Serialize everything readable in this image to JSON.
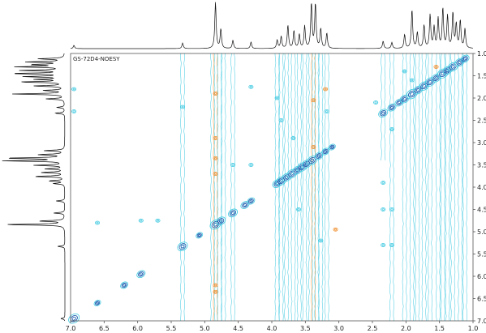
{
  "chart_data": {
    "type": "contour",
    "title": "GS-72D4-NOESY",
    "xlabel": "",
    "ylabel": "",
    "xlim": [
      7.0,
      1.0
    ],
    "ylim": [
      1.0,
      7.0
    ],
    "x_ticks": [
      "7.0",
      "6.5",
      "6.0",
      "5.5",
      "5.0",
      "4.5",
      "4.0",
      "3.5",
      "3.0",
      "2.5",
      "2.0",
      "1.5",
      "1.0"
    ],
    "y_ticks": [
      "1.0",
      "1.5",
      "2.0",
      "2.5",
      "3.0",
      "3.5",
      "4.0",
      "4.5",
      "5.0",
      "5.5",
      "6.0",
      "6.5",
      "7.0"
    ],
    "colors": {
      "contour_positive": "#3cc8e0",
      "contour_diagonal": "#1f5fb0",
      "contour_negative": "#f08c28",
      "spectrum_line": "#111111",
      "frame": "#555555"
    },
    "projection_peaks": [
      {
        "ppm": 6.95,
        "h": 0.07
      },
      {
        "ppm": 5.33,
        "h": 0.12
      },
      {
        "ppm": 4.84,
        "h": 1.0
      },
      {
        "ppm": 4.76,
        "h": 0.42
      },
      {
        "ppm": 4.58,
        "h": 0.18
      },
      {
        "ppm": 4.31,
        "h": 0.14
      },
      {
        "ppm": 3.92,
        "h": 0.18
      },
      {
        "ppm": 3.86,
        "h": 0.26
      },
      {
        "ppm": 3.76,
        "h": 0.5
      },
      {
        "ppm": 3.67,
        "h": 0.38
      },
      {
        "ppm": 3.59,
        "h": 0.3
      },
      {
        "ppm": 3.51,
        "h": 0.48
      },
      {
        "ppm": 3.41,
        "h": 0.97
      },
      {
        "ppm": 3.35,
        "h": 0.96
      },
      {
        "ppm": 3.27,
        "h": 0.42
      },
      {
        "ppm": 3.18,
        "h": 0.33
      },
      {
        "ppm": 2.34,
        "h": 0.16
      },
      {
        "ppm": 2.21,
        "h": 0.13
      },
      {
        "ppm": 2.02,
        "h": 0.3
      },
      {
        "ppm": 1.91,
        "h": 0.84
      },
      {
        "ppm": 1.83,
        "h": 0.34
      },
      {
        "ppm": 1.73,
        "h": 0.5
      },
      {
        "ppm": 1.64,
        "h": 0.72
      },
      {
        "ppm": 1.58,
        "h": 0.45
      },
      {
        "ppm": 1.52,
        "h": 0.64
      },
      {
        "ppm": 1.45,
        "h": 0.86
      },
      {
        "ppm": 1.38,
        "h": 0.7
      },
      {
        "ppm": 1.3,
        "h": 0.76
      },
      {
        "ppm": 1.25,
        "h": 0.52
      },
      {
        "ppm": 1.19,
        "h": 0.6
      },
      {
        "ppm": 1.12,
        "h": 0.42
      }
    ],
    "diagonal_peaks": [
      {
        "ppm": 6.95,
        "s": 1.3
      },
      {
        "ppm": 6.6,
        "s": 0.8
      },
      {
        "ppm": 6.2,
        "s": 0.9
      },
      {
        "ppm": 5.95,
        "s": 1.0
      },
      {
        "ppm": 5.33,
        "s": 1.2
      },
      {
        "ppm": 5.08,
        "s": 0.8
      },
      {
        "ppm": 4.84,
        "s": 1.3
      },
      {
        "ppm": 4.76,
        "s": 1.1
      },
      {
        "ppm": 4.58,
        "s": 1.1
      },
      {
        "ppm": 4.4,
        "s": 1.0
      },
      {
        "ppm": 4.31,
        "s": 0.9
      },
      {
        "ppm": 3.92,
        "s": 1.1
      },
      {
        "ppm": 3.86,
        "s": 1.2
      },
      {
        "ppm": 3.78,
        "s": 1.1
      },
      {
        "ppm": 3.7,
        "s": 1.2
      },
      {
        "ppm": 3.62,
        "s": 1.1
      },
      {
        "ppm": 3.55,
        "s": 1.2
      },
      {
        "ppm": 3.48,
        "s": 1.1
      },
      {
        "ppm": 3.4,
        "s": 1.2
      },
      {
        "ppm": 3.3,
        "s": 1.0
      },
      {
        "ppm": 3.2,
        "s": 0.9
      },
      {
        "ppm": 3.1,
        "s": 0.8
      },
      {
        "ppm": 2.34,
        "s": 1.1
      },
      {
        "ppm": 2.21,
        "s": 1.0
      },
      {
        "ppm": 2.1,
        "s": 1.0
      },
      {
        "ppm": 2.02,
        "s": 1.1
      },
      {
        "ppm": 1.91,
        "s": 1.3
      },
      {
        "ppm": 1.82,
        "s": 1.1
      },
      {
        "ppm": 1.73,
        "s": 1.2
      },
      {
        "ppm": 1.64,
        "s": 1.2
      },
      {
        "ppm": 1.55,
        "s": 1.1
      },
      {
        "ppm": 1.45,
        "s": 1.3
      },
      {
        "ppm": 1.38,
        "s": 1.1
      },
      {
        "ppm": 1.3,
        "s": 1.2
      },
      {
        "ppm": 1.2,
        "s": 1.1
      },
      {
        "ppm": 1.12,
        "s": 1.0
      }
    ],
    "vertical_streaks": [
      {
        "ppm": 5.33,
        "from": 1.0,
        "to": 7.0,
        "kind": "positive"
      },
      {
        "ppm": 4.88,
        "from": 1.0,
        "to": 7.0,
        "kind": "positive"
      },
      {
        "ppm": 4.84,
        "from": 1.0,
        "to": 7.0,
        "kind": "negative"
      },
      {
        "ppm": 4.78,
        "from": 1.0,
        "to": 7.0,
        "kind": "positive"
      },
      {
        "ppm": 4.72,
        "from": 1.0,
        "to": 7.0,
        "kind": "positive"
      },
      {
        "ppm": 4.58,
        "from": 1.0,
        "to": 7.0,
        "kind": "positive"
      },
      {
        "ppm": 3.92,
        "from": 1.0,
        "to": 7.0,
        "kind": "positive"
      },
      {
        "ppm": 3.86,
        "from": 1.0,
        "to": 7.0,
        "kind": "positive"
      },
      {
        "ppm": 3.78,
        "from": 1.0,
        "to": 7.0,
        "kind": "positive"
      },
      {
        "ppm": 3.68,
        "from": 1.0,
        "to": 7.0,
        "kind": "positive"
      },
      {
        "ppm": 3.59,
        "from": 1.0,
        "to": 7.0,
        "kind": "positive"
      },
      {
        "ppm": 3.51,
        "from": 1.0,
        "to": 7.0,
        "kind": "positive"
      },
      {
        "ppm": 3.42,
        "from": 1.0,
        "to": 7.0,
        "kind": "positive"
      },
      {
        "ppm": 3.38,
        "from": 1.0,
        "to": 7.0,
        "kind": "negative"
      },
      {
        "ppm": 3.33,
        "from": 1.0,
        "to": 7.0,
        "kind": "positive"
      },
      {
        "ppm": 3.27,
        "from": 1.0,
        "to": 7.0,
        "kind": "positive"
      },
      {
        "ppm": 3.18,
        "from": 1.0,
        "to": 7.0,
        "kind": "positive"
      },
      {
        "ppm": 2.34,
        "from": 1.0,
        "to": 3.4,
        "kind": "positive"
      },
      {
        "ppm": 2.21,
        "from": 1.0,
        "to": 7.0,
        "kind": "positive"
      },
      {
        "ppm": 2.02,
        "from": 1.0,
        "to": 7.0,
        "kind": "positive"
      },
      {
        "ppm": 1.91,
        "from": 1.0,
        "to": 7.0,
        "kind": "positive"
      },
      {
        "ppm": 1.83,
        "from": 1.0,
        "to": 7.0,
        "kind": "positive"
      },
      {
        "ppm": 1.73,
        "from": 1.0,
        "to": 7.0,
        "kind": "positive"
      },
      {
        "ppm": 1.64,
        "from": 1.0,
        "to": 7.0,
        "kind": "positive"
      },
      {
        "ppm": 1.52,
        "from": 1.0,
        "to": 7.0,
        "kind": "positive"
      },
      {
        "ppm": 1.45,
        "from": 1.0,
        "to": 7.0,
        "kind": "positive"
      },
      {
        "ppm": 1.38,
        "from": 1.0,
        "to": 7.0,
        "kind": "positive"
      },
      {
        "ppm": 1.3,
        "from": 1.0,
        "to": 7.0,
        "kind": "positive"
      },
      {
        "ppm": 1.19,
        "from": 1.0,
        "to": 7.0,
        "kind": "positive"
      },
      {
        "ppm": 1.12,
        "from": 1.0,
        "to": 7.0,
        "kind": "positive"
      }
    ],
    "cross_peaks": [
      {
        "x": 4.84,
        "y": 3.35,
        "kind": "negative"
      },
      {
        "x": 4.84,
        "y": 3.7,
        "kind": "negative"
      },
      {
        "x": 4.84,
        "y": 6.2,
        "kind": "negative"
      },
      {
        "x": 4.84,
        "y": 6.35,
        "kind": "negative"
      },
      {
        "x": 4.84,
        "y": 1.9,
        "kind": "negative"
      },
      {
        "x": 4.84,
        "y": 2.9,
        "kind": "negative"
      },
      {
        "x": 3.38,
        "y": 2.05,
        "kind": "negative"
      },
      {
        "x": 3.2,
        "y": 1.8,
        "kind": "negative"
      },
      {
        "x": 3.05,
        "y": 4.95,
        "kind": "negative"
      },
      {
        "x": 3.38,
        "y": 3.1,
        "kind": "negative"
      },
      {
        "x": 1.55,
        "y": 1.3,
        "kind": "negative"
      },
      {
        "x": 6.95,
        "y": 2.3,
        "kind": "positive"
      },
      {
        "x": 6.95,
        "y": 1.8,
        "kind": "positive"
      },
      {
        "x": 5.33,
        "y": 2.2,
        "kind": "positive"
      },
      {
        "x": 4.58,
        "y": 3.5,
        "kind": "positive"
      },
      {
        "x": 4.31,
        "y": 3.5,
        "kind": "positive"
      },
      {
        "x": 4.31,
        "y": 1.75,
        "kind": "positive"
      },
      {
        "x": 2.34,
        "y": 4.5,
        "kind": "positive"
      },
      {
        "x": 2.34,
        "y": 5.3,
        "kind": "positive"
      },
      {
        "x": 2.21,
        "y": 4.5,
        "kind": "positive"
      },
      {
        "x": 2.21,
        "y": 5.3,
        "kind": "positive"
      },
      {
        "x": 2.34,
        "y": 3.9,
        "kind": "positive"
      },
      {
        "x": 2.21,
        "y": 2.7,
        "kind": "positive"
      },
      {
        "x": 2.45,
        "y": 2.1,
        "kind": "positive"
      },
      {
        "x": 2.02,
        "y": 1.4,
        "kind": "positive"
      },
      {
        "x": 1.91,
        "y": 1.6,
        "kind": "positive"
      },
      {
        "x": 5.7,
        "y": 4.75,
        "kind": "positive"
      },
      {
        "x": 5.95,
        "y": 4.75,
        "kind": "positive"
      },
      {
        "x": 6.6,
        "y": 4.8,
        "kind": "positive"
      },
      {
        "x": 3.92,
        "y": 2.0,
        "kind": "positive"
      },
      {
        "x": 3.86,
        "y": 2.5,
        "kind": "positive"
      },
      {
        "x": 3.68,
        "y": 2.9,
        "kind": "positive"
      },
      {
        "x": 3.6,
        "y": 4.5,
        "kind": "positive"
      },
      {
        "x": 3.27,
        "y": 5.2,
        "kind": "positive"
      },
      {
        "x": 3.18,
        "y": 2.3,
        "kind": "positive"
      }
    ],
    "grid": false,
    "legend": "none"
  }
}
